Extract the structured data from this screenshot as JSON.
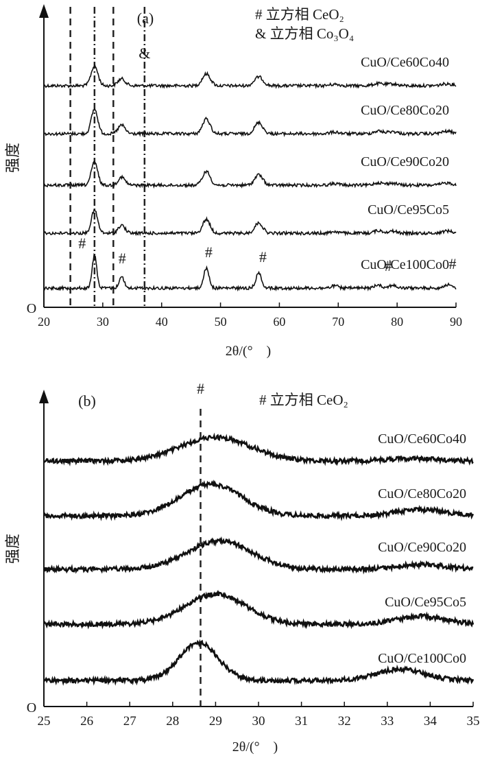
{
  "chart_data": [
    {
      "type": "line",
      "panel_label": "(a)",
      "xlabel": "2θ/(°　)",
      "ylabel": "强度",
      "origin_label": "O",
      "xlim": [
        20,
        90
      ],
      "xticks": [
        20,
        30,
        40,
        50,
        60,
        70,
        80,
        90
      ],
      "legend": [
        "# 立方相 CeO₂",
        "& 立方相 Co₃O₄"
      ],
      "reference_lines": [
        {
          "x": 24.5,
          "style": "dashed"
        },
        {
          "x": 28.6,
          "style": "dash-dot",
          "marker": ""
        },
        {
          "x": 31.8,
          "style": "dashed"
        },
        {
          "x": 37.1,
          "style": "dash-dot",
          "marker": "&"
        }
      ],
      "peak_markers": [
        {
          "x": 26.5,
          "label": "#"
        },
        {
          "x": 33.3,
          "label": "#"
        },
        {
          "x": 48.0,
          "label": "#"
        },
        {
          "x": 57.2,
          "label": "#"
        },
        {
          "x": 78.5,
          "label": "#"
        },
        {
          "x": 90.0,
          "label": "#"
        }
      ],
      "peaks": [
        {
          "x": 28.6,
          "rel": 1.0,
          "w": 0.55
        },
        {
          "x": 33.2,
          "rel": 0.35,
          "w": 0.6
        },
        {
          "x": 47.6,
          "rel": 0.6,
          "w": 0.65
        },
        {
          "x": 56.5,
          "rel": 0.45,
          "w": 0.7
        },
        {
          "x": 69.4,
          "rel": 0.07,
          "w": 0.8
        },
        {
          "x": 76.8,
          "rel": 0.11,
          "w": 0.8
        },
        {
          "x": 79.2,
          "rel": 0.09,
          "w": 0.8
        },
        {
          "x": 88.5,
          "rel": 0.1,
          "w": 0.9
        }
      ],
      "series": [
        {
          "name": "CuO/Ce60Co40",
          "peak_height": 0.6,
          "width_scale": 1.5
        },
        {
          "name": "CuO/Ce80Co20",
          "peak_height": 0.75,
          "width_scale": 1.4
        },
        {
          "name": "CuO/Ce90Co20",
          "peak_height": 0.7,
          "width_scale": 1.4
        },
        {
          "name": "CuO/Ce95Co5",
          "peak_height": 0.7,
          "width_scale": 1.35
        },
        {
          "name": "CuO/Ce100Co0",
          "peak_height": 1.0,
          "width_scale": 1.0
        }
      ]
    },
    {
      "type": "line",
      "panel_label": "(b)",
      "xlabel": "2θ/(°　)",
      "ylabel": "强度",
      "origin_label": "O",
      "xlim": [
        25,
        35
      ],
      "xticks": [
        25,
        26,
        27,
        28,
        29,
        30,
        31,
        32,
        33,
        34,
        35
      ],
      "legend": [
        "# 立方相 CeO₂"
      ],
      "reference_lines": [
        {
          "x": 28.65,
          "style": "dashed",
          "marker": "#"
        }
      ],
      "series": [
        {
          "name": "CuO/Ce60Co40",
          "peak_x": 29.0,
          "peak_height": 0.75,
          "peak_width": 1.1,
          "second_x": 33.6,
          "second_height": 0.08
        },
        {
          "name": "CuO/Ce80Co20",
          "peak_x": 28.9,
          "peak_height": 1.0,
          "peak_width": 0.95,
          "second_x": 33.8,
          "second_height": 0.2
        },
        {
          "name": "CuO/Ce90Co20",
          "peak_x": 29.1,
          "peak_height": 0.9,
          "peak_width": 1.0,
          "second_x": 33.8,
          "second_height": 0.15
        },
        {
          "name": "CuO/Ce95Co5",
          "peak_x": 29.0,
          "peak_height": 0.95,
          "peak_width": 0.95,
          "second_x": 33.8,
          "second_height": 0.25
        },
        {
          "name": "CuO/Ce100Co0",
          "peak_x": 28.6,
          "peak_height": 1.2,
          "peak_width": 0.6,
          "second_x": 33.3,
          "second_height": 0.35
        }
      ]
    }
  ]
}
